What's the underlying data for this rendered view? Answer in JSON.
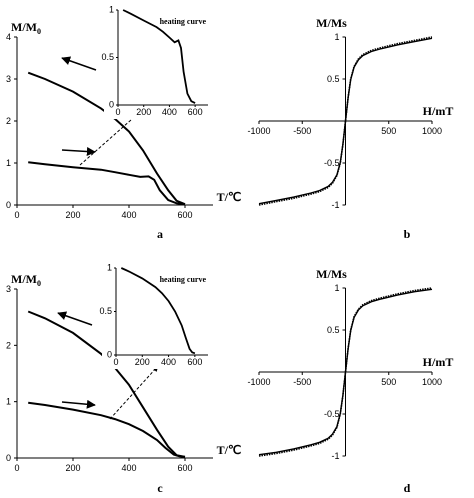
{
  "chart_data": [
    {
      "panel": "a",
      "type": "line",
      "ylabel": "M/M",
      "ylabel_sub": "0",
      "xlabel": "T/℃",
      "xlim": [
        0,
        700
      ],
      "ylim": [
        0,
        4
      ],
      "xticks": [
        0,
        200,
        400,
        600
      ],
      "yticks": [
        0,
        1,
        2,
        3,
        4
      ],
      "series": [
        {
          "role": "cooling",
          "x": [
            40,
            100,
            200,
            300,
            350,
            400,
            450,
            500,
            540,
            570,
            600
          ],
          "y": [
            3.15,
            3.0,
            2.7,
            2.3,
            2.05,
            1.75,
            1.3,
            0.75,
            0.35,
            0.1,
            0.02
          ]
        },
        {
          "role": "heating",
          "x": [
            40,
            100,
            200,
            300,
            350,
            400,
            440,
            470,
            490,
            510,
            540,
            570,
            600
          ],
          "y": [
            1.02,
            0.97,
            0.9,
            0.84,
            0.78,
            0.72,
            0.67,
            0.68,
            0.6,
            0.35,
            0.12,
            0.04,
            0.02
          ]
        }
      ],
      "inset": {
        "label": "heating curve",
        "xlim": [
          0,
          700
        ],
        "ylim": [
          0,
          1
        ],
        "xticks": [
          0,
          200,
          400,
          600
        ],
        "yticks": [
          0,
          0.5,
          1
        ],
        "x": [
          40,
          100,
          200,
          300,
          350,
          400,
          440,
          470,
          490,
          510,
          540,
          570,
          600
        ],
        "y": [
          1.0,
          0.96,
          0.89,
          0.82,
          0.77,
          0.71,
          0.66,
          0.68,
          0.6,
          0.35,
          0.12,
          0.04,
          0.02
        ]
      }
    },
    {
      "panel": "b",
      "type": "line",
      "ylabel": "M/Ms",
      "xlabel": "H/mT",
      "xlim": [
        -1000,
        1000
      ],
      "ylim": [
        -1,
        1
      ],
      "xticks": [
        -1000,
        -500,
        0,
        500,
        1000
      ],
      "xtick_labels": [
        "-1000",
        "-500",
        "",
        "500",
        "1000"
      ],
      "yticks": [
        -1,
        -0.5,
        0.5,
        1
      ],
      "yticks_labels": [
        "-1",
        "-0.5",
        "0.5",
        "1"
      ],
      "x": [
        -1000,
        -800,
        -600,
        -400,
        -300,
        -200,
        -150,
        -100,
        -60,
        -30,
        0,
        30,
        60,
        100,
        150,
        200,
        300,
        400,
        600,
        800,
        1000
      ],
      "y": [
        -1.0,
        -0.96,
        -0.92,
        -0.87,
        -0.84,
        -0.79,
        -0.74,
        -0.65,
        -0.5,
        -0.28,
        0.0,
        0.28,
        0.5,
        0.65,
        0.74,
        0.79,
        0.84,
        0.87,
        0.92,
        0.96,
        1.0
      ]
    },
    {
      "panel": "c",
      "type": "line",
      "ylabel": "M/M",
      "ylabel_sub": "0",
      "xlabel": "T/℃",
      "xlim": [
        0,
        700
      ],
      "ylim": [
        0,
        3
      ],
      "xticks": [
        0,
        200,
        400,
        600
      ],
      "yticks": [
        0,
        1,
        2,
        3
      ],
      "series": [
        {
          "role": "cooling",
          "x": [
            40,
            100,
            200,
            300,
            350,
            400,
            450,
            500,
            540,
            570,
            600
          ],
          "y": [
            2.6,
            2.48,
            2.22,
            1.85,
            1.6,
            1.3,
            0.9,
            0.5,
            0.2,
            0.05,
            0.02
          ]
        },
        {
          "role": "heating",
          "x": [
            40,
            100,
            200,
            300,
            350,
            400,
            450,
            500,
            530,
            560,
            580,
            600
          ],
          "y": [
            0.98,
            0.94,
            0.86,
            0.76,
            0.69,
            0.6,
            0.48,
            0.32,
            0.18,
            0.06,
            0.03,
            0.02
          ]
        }
      ],
      "inset": {
        "label": "heating curve",
        "xlim": [
          0,
          700
        ],
        "ylim": [
          0,
          1
        ],
        "xticks": [
          0,
          200,
          400,
          600
        ],
        "yticks": [
          0,
          0.5,
          1
        ],
        "x": [
          40,
          100,
          200,
          300,
          350,
          400,
          450,
          500,
          530,
          560,
          580,
          600
        ],
        "y": [
          1.0,
          0.96,
          0.88,
          0.78,
          0.71,
          0.62,
          0.5,
          0.34,
          0.2,
          0.07,
          0.03,
          0.02
        ]
      }
    },
    {
      "panel": "d",
      "type": "line",
      "ylabel": "M/Ms",
      "xlabel": "H/mT",
      "xlim": [
        -1000,
        1000
      ],
      "ylim": [
        -1,
        1
      ],
      "xticks": [
        -1000,
        -500,
        0,
        500,
        1000
      ],
      "xtick_labels": [
        "-1000",
        "-500",
        "",
        "500",
        "1000"
      ],
      "yticks": [
        -1,
        -0.5,
        0.5,
        1
      ],
      "yticks_labels": [
        "-1",
        "-0.5",
        "0.5",
        "1"
      ],
      "x": [
        -1000,
        -800,
        -600,
        -400,
        -300,
        -200,
        -150,
        -100,
        -60,
        -30,
        0,
        30,
        60,
        100,
        150,
        200,
        300,
        400,
        600,
        800,
        1000
      ],
      "y": [
        -1.0,
        -0.97,
        -0.93,
        -0.88,
        -0.85,
        -0.8,
        -0.75,
        -0.66,
        -0.5,
        -0.28,
        0.0,
        0.28,
        0.5,
        0.66,
        0.75,
        0.8,
        0.85,
        0.88,
        0.93,
        0.97,
        1.0
      ]
    }
  ]
}
